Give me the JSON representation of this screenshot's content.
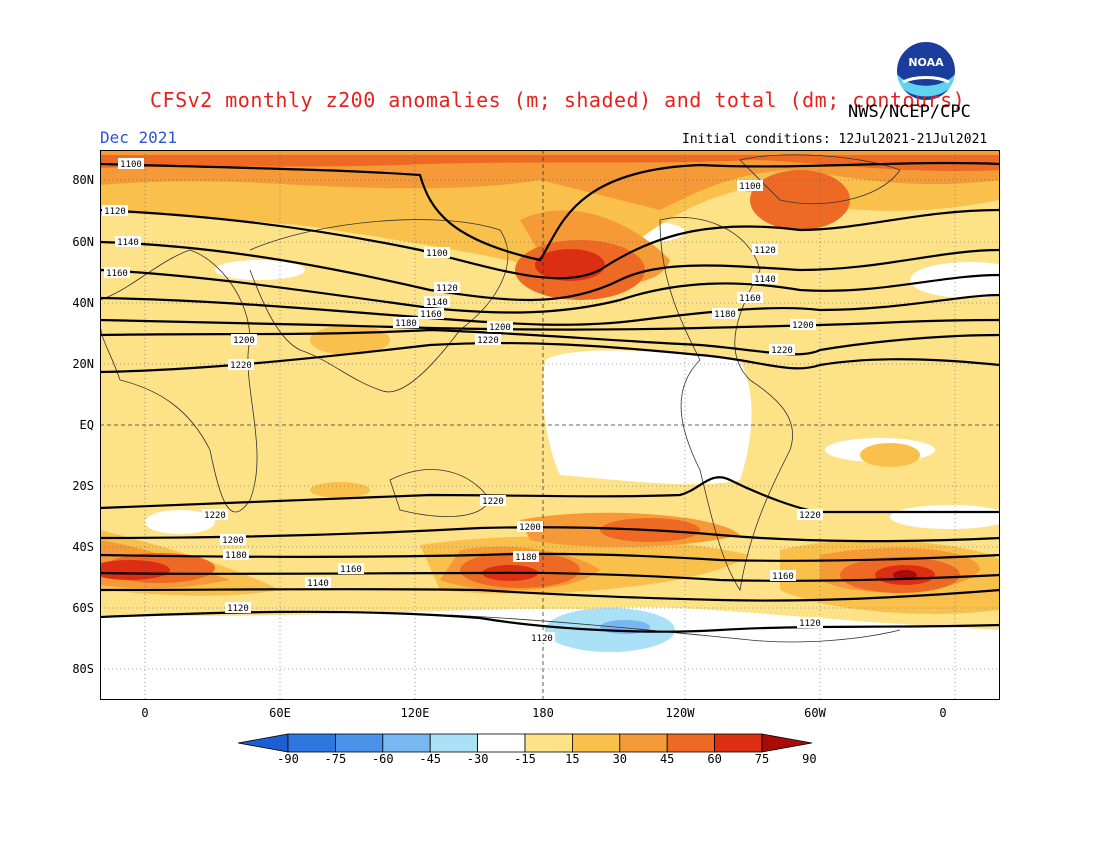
{
  "header": {
    "title": "CFSv2 monthly z200 anomalies (m; shaded) and total (dm; contours)",
    "org": "NWS/NCEP/CPC",
    "month": "Dec 2021",
    "initial_conditions": "Initial conditions: 12Jul2021-21Jul2021",
    "logo": "noaa-logo"
  },
  "axes": {
    "lat_labels": [
      "80N",
      "60N",
      "40N",
      "20N",
      "EQ",
      "20S",
      "40S",
      "60S",
      "80S"
    ],
    "lon_labels": [
      "0",
      "60E",
      "120E",
      "180",
      "120W",
      "60W",
      "0"
    ]
  },
  "colorbar": {
    "labels": [
      "-90",
      "-75",
      "-60",
      "-45",
      "-30",
      "-15",
      "15",
      "30",
      "45",
      "60",
      "75",
      "90"
    ],
    "colors": [
      "#1c5fd0",
      "#2f77e0",
      "#4b92ea",
      "#78b8f2",
      "#aae1f6",
      "#ffffff",
      "#fde288",
      "#f9c04c",
      "#f59a36",
      "#ee6a24",
      "#dc2e12",
      "#a80c06"
    ]
  },
  "contour_labels": [
    "1100",
    "1100",
    "1100",
    "1120",
    "1120",
    "1120",
    "1120",
    "1140",
    "1140",
    "1140",
    "1160",
    "1160",
    "1160",
    "1180",
    "1180",
    "1200",
    "1200",
    "1200",
    "1220",
    "1220",
    "1220",
    "1220",
    "1220",
    "1220",
    "1200",
    "1200",
    "1180",
    "1180",
    "1160",
    "1160",
    "1140",
    "1120",
    "1120",
    "1120"
  ]
}
